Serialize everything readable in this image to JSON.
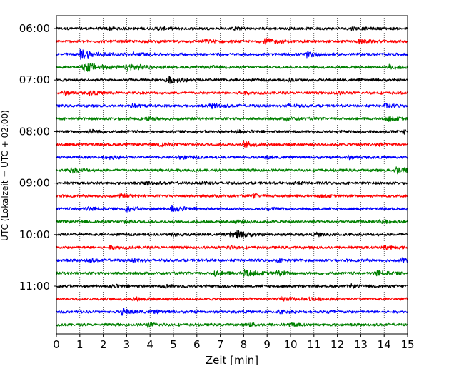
{
  "chart_data": {
    "type": "line",
    "title": "",
    "xlabel": "Zeit  [min]",
    "ylabel": "UTC (Lokalzeit = UTC + 02:00)",
    "x_range": [
      0,
      15
    ],
    "x_ticks": [
      "0",
      "1",
      "2",
      "3",
      "4",
      "5",
      "6",
      "7",
      "8",
      "9",
      "10",
      "11",
      "12",
      "13",
      "14",
      "15"
    ],
    "y_tick_labels": [
      "06:00",
      "07:00",
      "08:00",
      "09:00",
      "10:00",
      "11:00"
    ],
    "row_interval_minutes": 15,
    "first_row": "06:00",
    "grid": "vertical dotted lines at each minute",
    "series": [
      {
        "row_start": "06:00",
        "color": "#000000",
        "events": [
          {
            "t": 2.2,
            "amp": 0.35
          },
          {
            "t": 4.3,
            "amp": 0.3
          },
          {
            "t": 7.6,
            "amp": 0.3
          },
          {
            "t": 12.6,
            "amp": 0.3
          }
        ]
      },
      {
        "row_start": "06:15",
        "color": "#ff0000",
        "events": [
          {
            "t": 6.3,
            "amp": 0.4
          },
          {
            "t": 8.9,
            "amp": 0.7
          },
          {
            "t": 12.9,
            "amp": 0.5
          }
        ]
      },
      {
        "row_start": "06:30",
        "color": "#0000ff",
        "events": [
          {
            "t": 1.0,
            "amp": 1.2
          },
          {
            "t": 3.3,
            "amp": 0.4
          },
          {
            "t": 10.7,
            "amp": 0.7
          }
        ]
      },
      {
        "row_start": "06:45",
        "color": "#008000",
        "events": [
          {
            "t": 1.15,
            "amp": 1.3
          },
          {
            "t": 3.0,
            "amp": 1.0
          },
          {
            "t": 6.6,
            "amp": 0.3
          },
          {
            "t": 14.2,
            "amp": 0.6
          }
        ]
      },
      {
        "row_start": "07:00",
        "color": "#000000",
        "events": [
          {
            "t": 4.7,
            "amp": 0.9
          },
          {
            "t": 9.9,
            "amp": 0.3
          }
        ]
      },
      {
        "row_start": "07:15",
        "color": "#ff0000",
        "events": [
          {
            "t": 0.3,
            "amp": 0.4
          },
          {
            "t": 1.4,
            "amp": 0.5
          },
          {
            "t": 7.8,
            "amp": 0.4
          },
          {
            "t": 11.9,
            "amp": 0.3
          }
        ]
      },
      {
        "row_start": "07:30",
        "color": "#0000ff",
        "events": [
          {
            "t": 3.1,
            "amp": 0.5
          },
          {
            "t": 6.6,
            "amp": 0.6
          },
          {
            "t": 9.8,
            "amp": 0.4
          },
          {
            "t": 14.0,
            "amp": 0.5
          }
        ]
      },
      {
        "row_start": "07:45",
        "color": "#008000",
        "events": [
          {
            "t": 3.9,
            "amp": 0.4
          },
          {
            "t": 9.8,
            "amp": 0.4
          },
          {
            "t": 14.1,
            "amp": 0.6
          }
        ]
      },
      {
        "row_start": "08:00",
        "color": "#000000",
        "events": [
          {
            "t": 1.4,
            "amp": 0.5
          },
          {
            "t": 7.7,
            "amp": 0.4
          },
          {
            "t": 14.8,
            "amp": 0.5
          }
        ]
      },
      {
        "row_start": "08:15",
        "color": "#ff0000",
        "events": [
          {
            "t": 4.4,
            "amp": 0.4
          },
          {
            "t": 8.0,
            "amp": 0.7
          },
          {
            "t": 13.6,
            "amp": 0.4
          }
        ]
      },
      {
        "row_start": "08:30",
        "color": "#0000ff",
        "events": [
          {
            "t": 2.2,
            "amp": 0.4
          },
          {
            "t": 5.2,
            "amp": 0.4
          },
          {
            "t": 8.9,
            "amp": 0.4
          },
          {
            "t": 12.4,
            "amp": 0.4
          }
        ]
      },
      {
        "row_start": "08:45",
        "color": "#008000",
        "events": [
          {
            "t": 0.6,
            "amp": 0.6
          },
          {
            "t": 4.5,
            "amp": 0.3
          },
          {
            "t": 14.5,
            "amp": 0.9
          }
        ]
      },
      {
        "row_start": "09:00",
        "color": "#000000",
        "events": [
          {
            "t": 3.8,
            "amp": 0.4
          },
          {
            "t": 6.3,
            "amp": 0.4
          },
          {
            "t": 10.1,
            "amp": 0.4
          }
        ]
      },
      {
        "row_start": "09:15",
        "color": "#ff0000",
        "events": [
          {
            "t": 2.7,
            "amp": 0.4
          },
          {
            "t": 8.4,
            "amp": 0.4
          },
          {
            "t": 11.2,
            "amp": 0.3
          }
        ]
      },
      {
        "row_start": "09:30",
        "color": "#0000ff",
        "events": [
          {
            "t": 1.3,
            "amp": 0.5
          },
          {
            "t": 2.95,
            "amp": 0.6
          },
          {
            "t": 4.9,
            "amp": 0.8
          },
          {
            "t": 9.0,
            "amp": 0.3
          }
        ]
      },
      {
        "row_start": "09:45",
        "color": "#008000",
        "events": [
          {
            "t": 2.9,
            "amp": 0.4
          },
          {
            "t": 7.7,
            "amp": 0.4
          },
          {
            "t": 13.8,
            "amp": 0.4
          }
        ]
      },
      {
        "row_start": "10:00",
        "color": "#000000",
        "events": [
          {
            "t": 4.9,
            "amp": 0.4
          },
          {
            "t": 7.4,
            "amp": 0.5
          },
          {
            "t": 7.7,
            "amp": 0.7
          },
          {
            "t": 11.1,
            "amp": 0.4
          }
        ]
      },
      {
        "row_start": "10:15",
        "color": "#ff0000",
        "events": [
          {
            "t": 2.3,
            "amp": 0.4
          },
          {
            "t": 7.3,
            "amp": 0.4
          },
          {
            "t": 14.0,
            "amp": 0.5
          }
        ]
      },
      {
        "row_start": "10:30",
        "color": "#0000ff",
        "events": [
          {
            "t": 1.3,
            "amp": 0.4
          },
          {
            "t": 3.3,
            "amp": 0.4
          },
          {
            "t": 9.4,
            "amp": 0.4
          },
          {
            "t": 14.7,
            "amp": 0.5
          }
        ]
      },
      {
        "row_start": "10:45",
        "color": "#008000",
        "events": [
          {
            "t": 6.7,
            "amp": 0.6
          },
          {
            "t": 8.0,
            "amp": 0.9
          },
          {
            "t": 9.4,
            "amp": 0.6
          },
          {
            "t": 13.6,
            "amp": 0.7
          }
        ]
      },
      {
        "row_start": "11:00",
        "color": "#000000",
        "events": [
          {
            "t": 2.3,
            "amp": 0.4
          },
          {
            "t": 4.6,
            "amp": 0.4
          },
          {
            "t": 12.6,
            "amp": 0.3
          }
        ]
      },
      {
        "row_start": "11:15",
        "color": "#ff0000",
        "events": [
          {
            "t": 3.3,
            "amp": 0.4
          },
          {
            "t": 9.6,
            "amp": 0.5
          },
          {
            "t": 10.8,
            "amp": 0.4
          }
        ]
      },
      {
        "row_start": "11:30",
        "color": "#0000ff",
        "events": [
          {
            "t": 2.8,
            "amp": 0.7
          },
          {
            "t": 4.1,
            "amp": 0.3
          },
          {
            "t": 9.5,
            "amp": 0.4
          },
          {
            "t": 11.6,
            "amp": 0.4
          }
        ]
      },
      {
        "row_start": "11:45",
        "color": "#008000",
        "events": [
          {
            "t": 3.9,
            "amp": 0.5
          },
          {
            "t": 8.2,
            "amp": 0.4
          },
          {
            "t": 10.0,
            "amp": 0.4
          }
        ]
      }
    ]
  }
}
